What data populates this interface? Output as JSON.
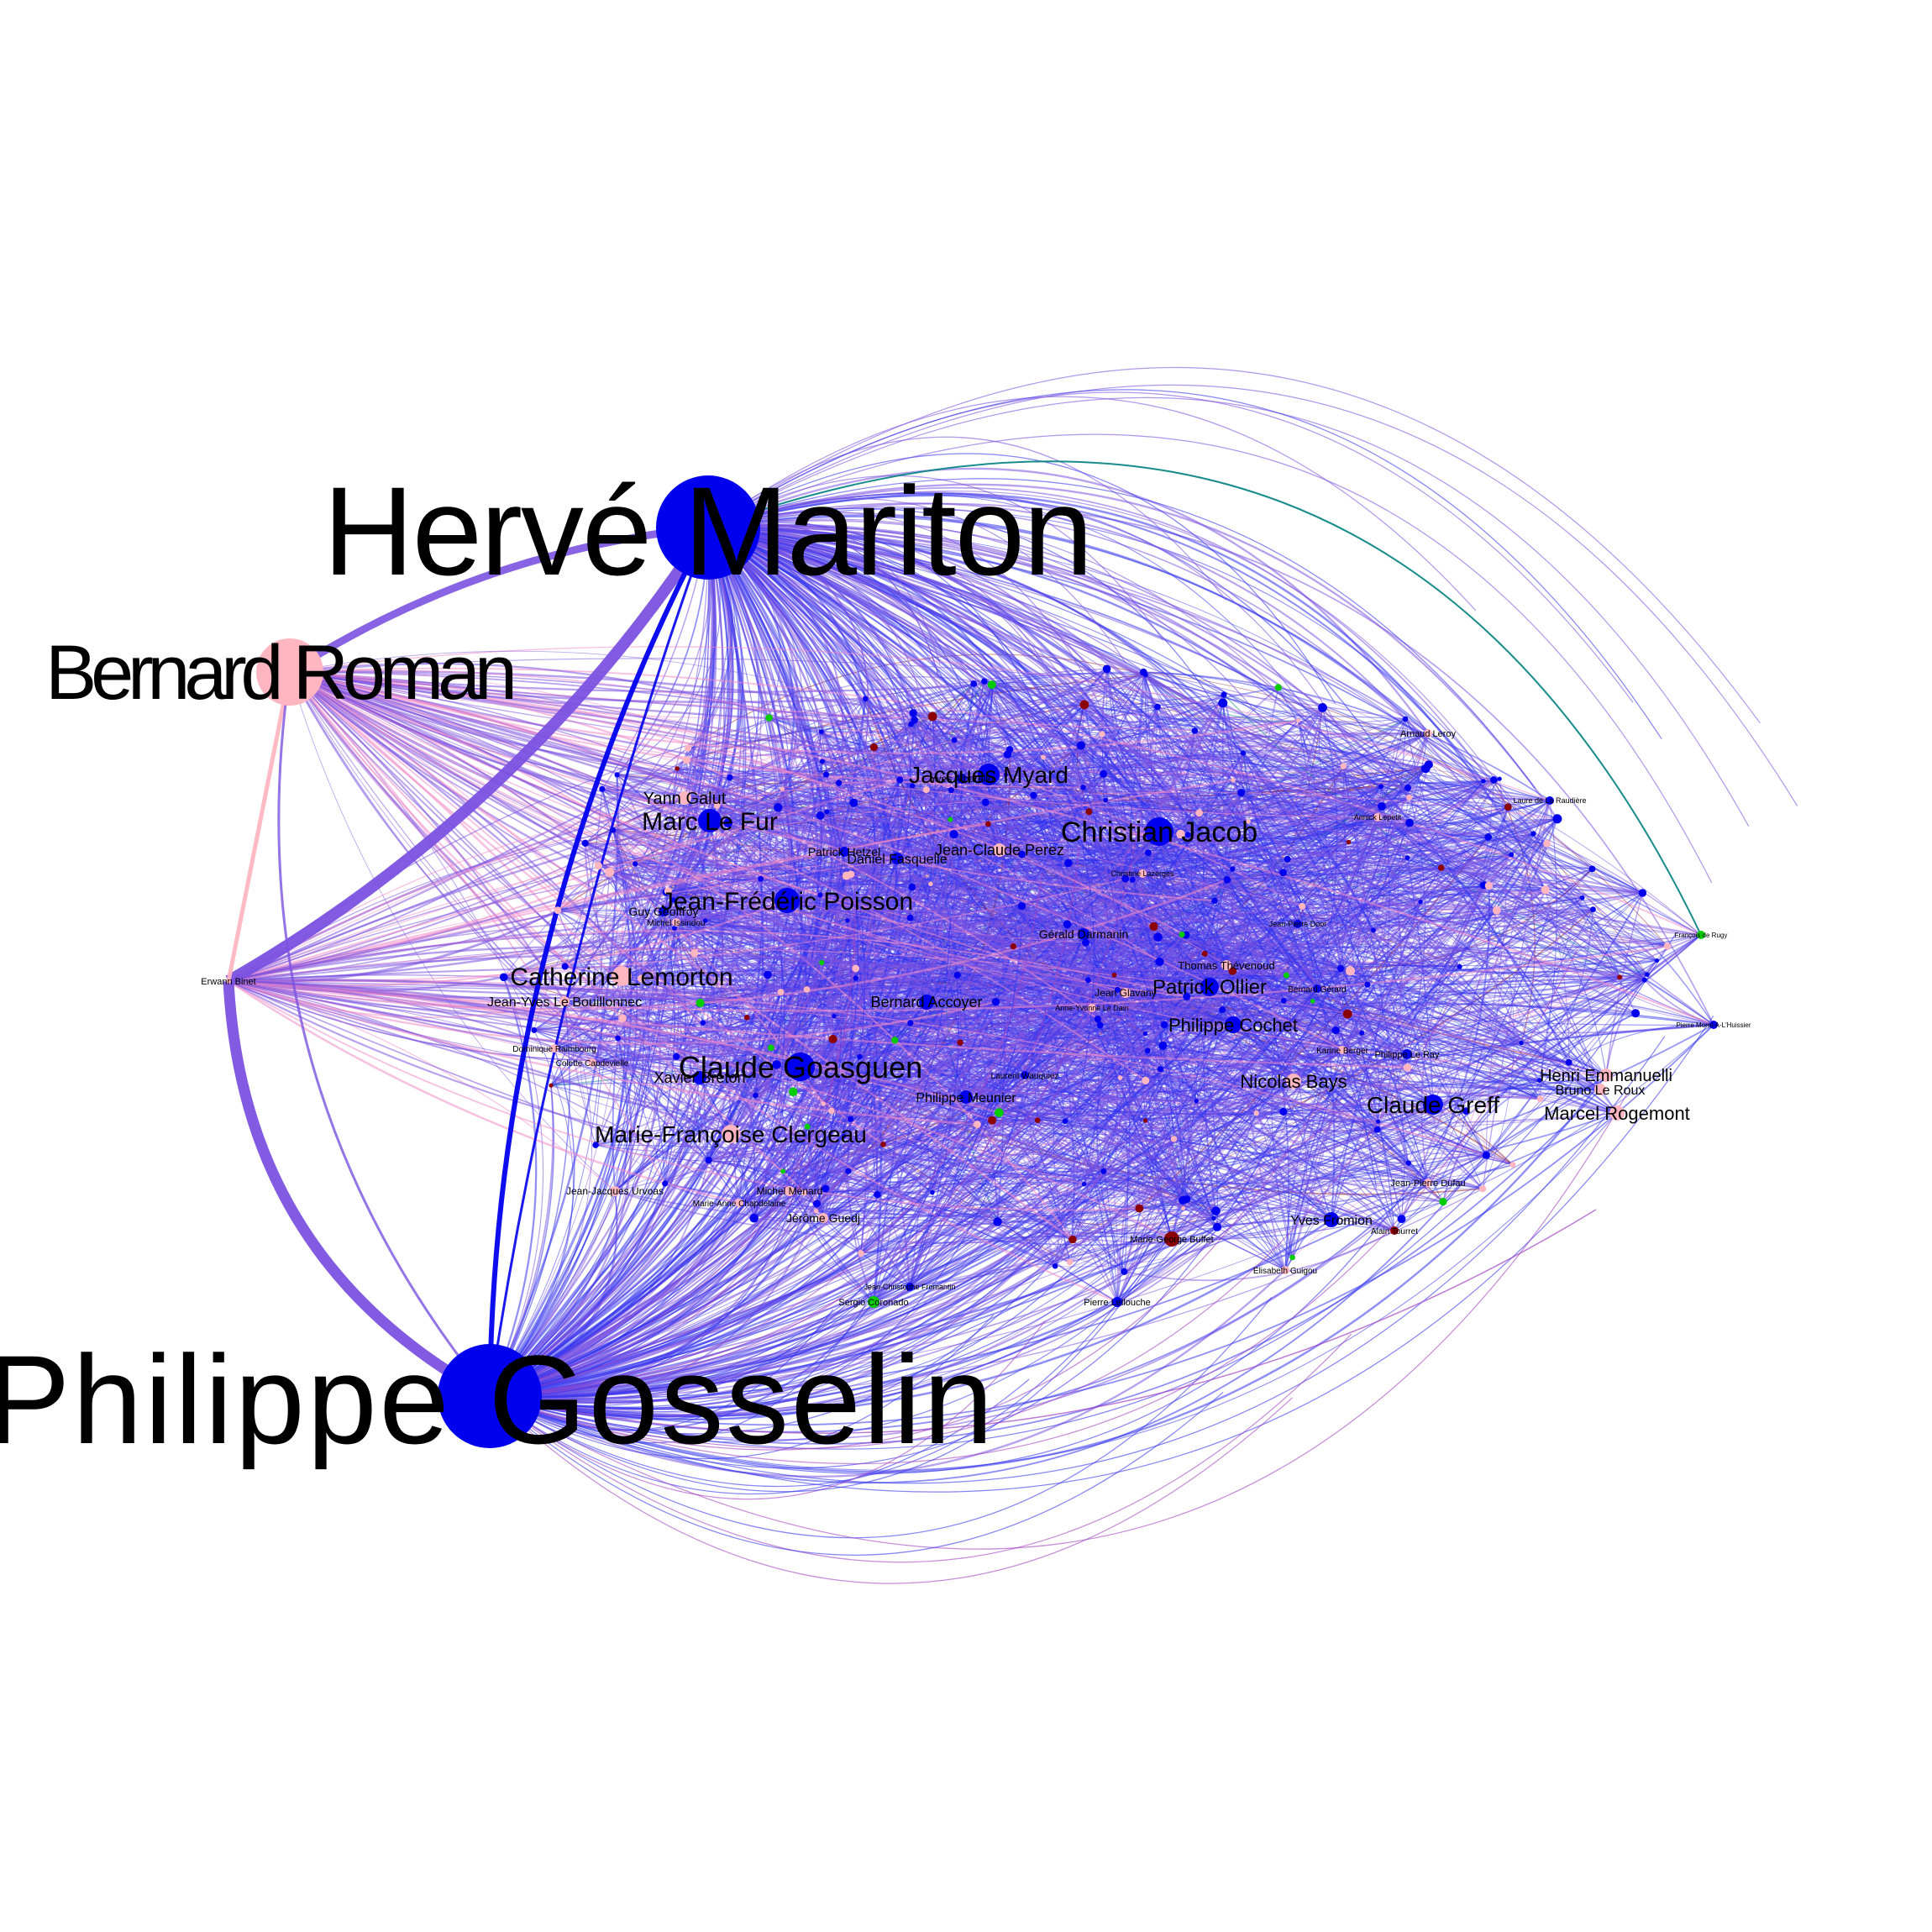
{
  "graph": {
    "colors": {
      "blue": "#0000ee",
      "pink": "#ffb6c1",
      "red": "#8b0000",
      "green": "#00cc00",
      "teal": "#008080",
      "edge_blue": "#3333ee",
      "edge_purple": "#7b52e0",
      "edge_pink": "#f08cc8"
    },
    "nodes": [
      {
        "name": "Hervé Mariton",
        "color": "blue"
      },
      {
        "name": "Philippe Gosselin",
        "color": "blue"
      },
      {
        "name": "Bernard Roman",
        "color": "pink"
      },
      {
        "name": "Erwann Binet",
        "color": "pink"
      },
      {
        "name": "Christian Jacob",
        "color": "blue"
      },
      {
        "name": "Claude Goasguen",
        "color": "blue"
      },
      {
        "name": "Jean-Frédéric Poisson",
        "color": "blue"
      },
      {
        "name": "Marc Le Fur",
        "color": "blue"
      },
      {
        "name": "Jacques Myard",
        "color": "blue"
      },
      {
        "name": "Catherine Lemorton",
        "color": "pink"
      },
      {
        "name": "Marie-Françoise Clergeau",
        "color": "pink"
      },
      {
        "name": "Claude Greff",
        "color": "blue"
      },
      {
        "name": "Patrick Ollier",
        "color": "blue"
      },
      {
        "name": "Philippe Cochet",
        "color": "blue"
      },
      {
        "name": "Nicolas Bays",
        "color": "pink"
      },
      {
        "name": "Henri Emmanuelli",
        "color": "pink"
      },
      {
        "name": "Marcel Rogemont",
        "color": "pink"
      },
      {
        "name": "Bruno Le Roux",
        "color": "pink"
      },
      {
        "name": "Yann Galut",
        "color": "pink"
      },
      {
        "name": "Jean-Claude Perez",
        "color": "pink"
      },
      {
        "name": "Bernard Accoyer",
        "color": "blue"
      },
      {
        "name": "Xavier Breton",
        "color": "blue"
      },
      {
        "name": "Jean-Yves Le Bouillonnec",
        "color": "pink"
      },
      {
        "name": "Philippe Meunier",
        "color": "blue"
      },
      {
        "name": "Yves Fromion",
        "color": "blue"
      },
      {
        "name": "Yves Albarello",
        "color": "blue"
      },
      {
        "name": "Daniel Fasquelle",
        "color": "blue"
      },
      {
        "name": "Patrick Hetzel",
        "color": "blue"
      },
      {
        "name": "Gérald Darmanin",
        "color": "blue"
      },
      {
        "name": "Jean Glavany",
        "color": "pink"
      },
      {
        "name": "Thomas Thévenoud",
        "color": "pink"
      },
      {
        "name": "Guy Geoffroy",
        "color": "blue"
      },
      {
        "name": "Sergio Coronado",
        "color": "green"
      },
      {
        "name": "Pierre Morel-A-L'Huissier",
        "color": "blue"
      },
      {
        "name": "Jérôme Guedj",
        "color": "pink"
      },
      {
        "name": "Jean-Jacques Urvoas",
        "color": "pink"
      },
      {
        "name": "Michel Ménard",
        "color": "pink"
      },
      {
        "name": "Jean-Pierre Dufau",
        "color": "pink"
      },
      {
        "name": "Arnaud Leroy",
        "color": "pink"
      },
      {
        "name": "Pierre Lellouche",
        "color": "blue"
      },
      {
        "name": "Anne-Yvonne Le Dain",
        "color": "pink"
      },
      {
        "name": "Christine Lazerges",
        "color": "pink"
      },
      {
        "name": "Jean-Pierre Door",
        "color": "blue"
      },
      {
        "name": "Philippe Le Ray",
        "color": "blue"
      },
      {
        "name": "Jean-Christophe Fromantin",
        "color": "blue"
      },
      {
        "name": "François de Rugy",
        "color": "green"
      },
      {
        "name": "Marie-George Buffet",
        "color": "red"
      },
      {
        "name": "Annick Lepetit",
        "color": "pink"
      },
      {
        "name": "Laure de La Raudière",
        "color": "blue"
      },
      {
        "name": "Elisabeth Guigou",
        "color": "pink"
      },
      {
        "name": "Marie-Anne Chapdelaine",
        "color": "pink"
      },
      {
        "name": "Michel Issindou",
        "color": "pink"
      },
      {
        "name": "Dominique Raimbourg",
        "color": "pink"
      },
      {
        "name": "Colette Capdevielle",
        "color": "pink"
      },
      {
        "name": "Karine Berger",
        "color": "pink"
      },
      {
        "name": "Bernard Gérard",
        "color": "blue"
      },
      {
        "name": "Laurent Wauquiez",
        "color": "blue"
      },
      {
        "name": "Alain Tourret",
        "color": "red"
      }
    ]
  }
}
